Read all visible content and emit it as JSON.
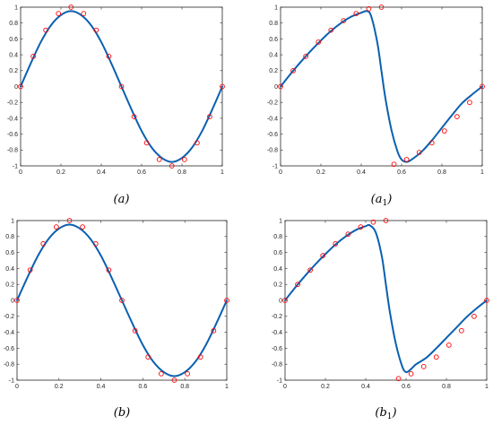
{
  "colors": {
    "line": "#0a60b0",
    "marker": "#ff0000",
    "axes": "#262626"
  },
  "chart_data": [
    {
      "type": "line",
      "caption": "(a)",
      "xlim": [
        0,
        1
      ],
      "ylim": [
        -1,
        1
      ],
      "xticks": [
        0,
        0.2,
        0.4,
        0.6,
        0.8,
        1
      ],
      "yticks": [
        -1,
        -0.8,
        -0.6,
        -0.4,
        -0.2,
        0,
        0.2,
        0.4,
        0.6,
        0.8,
        1
      ],
      "grid": false,
      "series": [
        {
          "kind": "line",
          "x": [
            0,
            0.05,
            0.1,
            0.15,
            0.2,
            0.25,
            0.3,
            0.35,
            0.4,
            0.45,
            0.5,
            0.55,
            0.6,
            0.65,
            0.7,
            0.75,
            0.8,
            0.85,
            0.9,
            0.95,
            1
          ],
          "y": [
            0,
            0.29,
            0.56,
            0.77,
            0.9,
            0.95,
            0.9,
            0.77,
            0.56,
            0.29,
            0,
            -0.29,
            -0.56,
            -0.77,
            -0.9,
            -0.95,
            -0.9,
            -0.77,
            -0.56,
            -0.29,
            0
          ]
        },
        {
          "kind": "scatter",
          "x": [
            0,
            0.0625,
            0.125,
            0.1875,
            0.25,
            0.3125,
            0.375,
            0.4375,
            0.5,
            0.5625,
            0.625,
            0.6875,
            0.75,
            0.8125,
            0.875,
            0.9375,
            1
          ],
          "y": [
            0,
            0.38,
            0.71,
            0.92,
            1,
            0.92,
            0.71,
            0.38,
            0,
            -0.38,
            -0.71,
            -0.92,
            -1,
            -0.92,
            -0.71,
            -0.38,
            0
          ]
        }
      ]
    },
    {
      "type": "line",
      "caption": "(a",
      "caption_sub": "1",
      "caption_end": ")",
      "xlim": [
        0,
        1
      ],
      "ylim": [
        -1,
        1
      ],
      "xticks": [
        0,
        0.2,
        0.4,
        0.6,
        0.8,
        1
      ],
      "yticks": [
        -1,
        -0.8,
        -0.6,
        -0.4,
        -0.2,
        0,
        0.2,
        0.4,
        0.6,
        0.8,
        1
      ],
      "grid": false,
      "series": [
        {
          "kind": "line",
          "x": [
            0,
            0.05,
            0.1,
            0.15,
            0.2,
            0.25,
            0.3,
            0.35,
            0.4,
            0.43,
            0.45,
            0.48,
            0.5,
            0.52,
            0.55,
            0.58,
            0.6,
            0.625,
            0.65,
            0.7,
            0.75,
            0.8,
            0.85,
            0.9,
            0.95,
            1
          ],
          "y": [
            0,
            0.16,
            0.31,
            0.45,
            0.58,
            0.7,
            0.8,
            0.88,
            0.93,
            0.95,
            0.88,
            0.55,
            0.2,
            -0.15,
            -0.55,
            -0.82,
            -0.92,
            -0.95,
            -0.92,
            -0.82,
            -0.68,
            -0.52,
            -0.36,
            -0.21,
            -0.1,
            0
          ]
        },
        {
          "kind": "scatter",
          "x": [
            0,
            0.0625,
            0.125,
            0.1875,
            0.25,
            0.3125,
            0.375,
            0.4375,
            0.5,
            0.5625,
            0.625,
            0.6875,
            0.75,
            0.8125,
            0.875,
            0.9375,
            1
          ],
          "y": [
            0,
            0.2,
            0.38,
            0.56,
            0.71,
            0.83,
            0.92,
            0.98,
            1,
            -0.98,
            -0.92,
            -0.83,
            -0.71,
            -0.56,
            -0.38,
            -0.2,
            0
          ]
        }
      ]
    },
    {
      "type": "line",
      "caption": "(b)",
      "xlim": [
        0,
        1
      ],
      "ylim": [
        -1,
        1
      ],
      "xticks": [
        0,
        0.2,
        0.4,
        0.6,
        0.8,
        1
      ],
      "yticks": [
        -1,
        -0.8,
        -0.6,
        -0.4,
        -0.2,
        0,
        0.2,
        0.4,
        0.6,
        0.8,
        1
      ],
      "grid": false,
      "series": [
        {
          "kind": "line",
          "x": [
            0,
            0.05,
            0.1,
            0.15,
            0.2,
            0.25,
            0.3,
            0.35,
            0.4,
            0.45,
            0.5,
            0.55,
            0.6,
            0.65,
            0.7,
            0.75,
            0.8,
            0.85,
            0.9,
            0.95,
            1
          ],
          "y": [
            0,
            0.29,
            0.56,
            0.77,
            0.9,
            0.95,
            0.9,
            0.77,
            0.56,
            0.29,
            0,
            -0.29,
            -0.56,
            -0.77,
            -0.9,
            -0.95,
            -0.9,
            -0.77,
            -0.56,
            -0.29,
            0
          ]
        },
        {
          "kind": "scatter",
          "x": [
            0,
            0.0625,
            0.125,
            0.1875,
            0.25,
            0.3125,
            0.375,
            0.4375,
            0.5,
            0.5625,
            0.625,
            0.6875,
            0.75,
            0.8125,
            0.875,
            0.9375,
            1
          ],
          "y": [
            0,
            0.38,
            0.71,
            0.92,
            1,
            0.92,
            0.71,
            0.38,
            0,
            -0.38,
            -0.71,
            -0.92,
            -1,
            -0.92,
            -0.71,
            -0.38,
            0
          ]
        }
      ]
    },
    {
      "type": "line",
      "caption": "(b",
      "caption_sub": "1",
      "caption_end": ")",
      "xlim": [
        0,
        1
      ],
      "ylim": [
        -1,
        1
      ],
      "xticks": [
        0,
        0.2,
        0.4,
        0.6,
        0.8,
        1
      ],
      "yticks": [
        -1,
        -0.8,
        -0.6,
        -0.4,
        -0.2,
        0,
        0.2,
        0.4,
        0.6,
        0.8,
        1
      ],
      "grid": false,
      "series": [
        {
          "kind": "line",
          "x": [
            0,
            0.05,
            0.1,
            0.15,
            0.2,
            0.25,
            0.3,
            0.35,
            0.4,
            0.42,
            0.45,
            0.48,
            0.5,
            0.52,
            0.55,
            0.58,
            0.6,
            0.625,
            0.65,
            0.7,
            0.75,
            0.8,
            0.85,
            0.9,
            0.95,
            1
          ],
          "y": [
            0,
            0.16,
            0.31,
            0.45,
            0.58,
            0.7,
            0.8,
            0.88,
            0.93,
            0.94,
            0.85,
            0.55,
            0.2,
            -0.15,
            -0.55,
            -0.82,
            -0.9,
            -0.86,
            -0.8,
            -0.72,
            -0.6,
            -0.47,
            -0.34,
            -0.21,
            -0.1,
            0
          ]
        },
        {
          "kind": "scatter",
          "x": [
            0,
            0.0625,
            0.125,
            0.1875,
            0.25,
            0.3125,
            0.375,
            0.4375,
            0.5,
            0.5625,
            0.625,
            0.6875,
            0.75,
            0.8125,
            0.875,
            0.9375,
            1
          ],
          "y": [
            0,
            0.2,
            0.38,
            0.56,
            0.71,
            0.83,
            0.92,
            0.98,
            1,
            -0.98,
            -0.92,
            -0.83,
            -0.71,
            -0.56,
            -0.38,
            -0.2,
            0
          ]
        }
      ]
    }
  ]
}
